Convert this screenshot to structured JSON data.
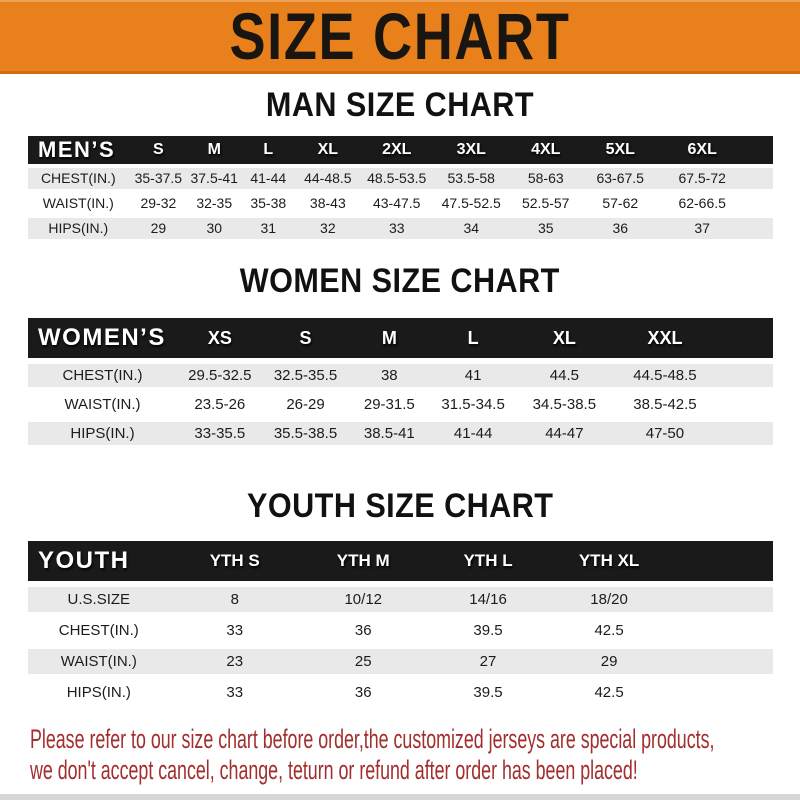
{
  "banner": {
    "title": "SIZE CHART"
  },
  "sections": [
    {
      "heading": "MAN SIZE CHART",
      "group_label": "MEN’S",
      "columns": [
        "S",
        "M",
        "L",
        "XL",
        "2XL",
        "3XL",
        "4XL",
        "5XL",
        "6XL"
      ],
      "rows": [
        {
          "label": "CHEST(IN.)",
          "values": [
            "35-37.5",
            "37.5-41",
            "41-44",
            "44-48.5",
            "48.5-53.5",
            "53.5-58",
            "58-63",
            "63-67.5",
            "67.5-72"
          ]
        },
        {
          "label": "WAIST(IN.)",
          "values": [
            "29-32",
            "32-35",
            "35-38",
            "38-43",
            "43-47.5",
            "47.5-52.5",
            "52.5-57",
            "57-62",
            "62-66.5"
          ]
        },
        {
          "label": "HIPS(IN.)",
          "values": [
            "29",
            "30",
            "31",
            "32",
            "33",
            "34",
            "35",
            "36",
            "37"
          ]
        }
      ]
    },
    {
      "heading": "WOMEN SIZE CHART",
      "group_label": "WOMEN’S",
      "columns": [
        "XS",
        "S",
        "M",
        "L",
        "XL",
        "XXL"
      ],
      "rows": [
        {
          "label": "CHEST(IN.)",
          "values": [
            "29.5-32.5",
            "32.5-35.5",
            "38",
            "41",
            "44.5",
            "44.5-48.5"
          ]
        },
        {
          "label": "WAIST(IN.)",
          "values": [
            "23.5-26",
            "26-29",
            "29-31.5",
            "31.5-34.5",
            "34.5-38.5",
            "38.5-42.5"
          ]
        },
        {
          "label": "HIPS(IN.)",
          "values": [
            "33-35.5",
            "35.5-38.5",
            "38.5-41",
            "41-44",
            "44-47",
            "47-50"
          ]
        }
      ]
    },
    {
      "heading": "YOUTH SIZE CHART",
      "group_label": "YOUTH",
      "columns": [
        "YTH S",
        "YTH M",
        "YTH L",
        "YTH XL"
      ],
      "rows": [
        {
          "label": "U.S.SIZE",
          "values": [
            "8",
            "10/12",
            "14/16",
            "18/20"
          ]
        },
        {
          "label": "CHEST(IN.)",
          "values": [
            "33",
            "36",
            "39.5",
            "42.5"
          ]
        },
        {
          "label": "WAIST(IN.)",
          "values": [
            "23",
            "25",
            "27",
            "29"
          ]
        },
        {
          "label": "HIPS(IN.)",
          "values": [
            "33",
            "36",
            "39.5",
            "42.5"
          ]
        }
      ]
    }
  ],
  "footer": {
    "line1": "Please refer to our size chart before order,the customized jerseys are special products,",
    "line2": "we don't accept cancel, change, teturn or refund after order has been placed!"
  },
  "colors": {
    "banner_orange": "#e8811b",
    "banner_border": "#cf6d10",
    "bar_black": "#1a1a1a",
    "stripe_gray": "#e9e9e9",
    "footer_red": "#a32e2e",
    "bottom_strip": "#d6d6d6"
  }
}
